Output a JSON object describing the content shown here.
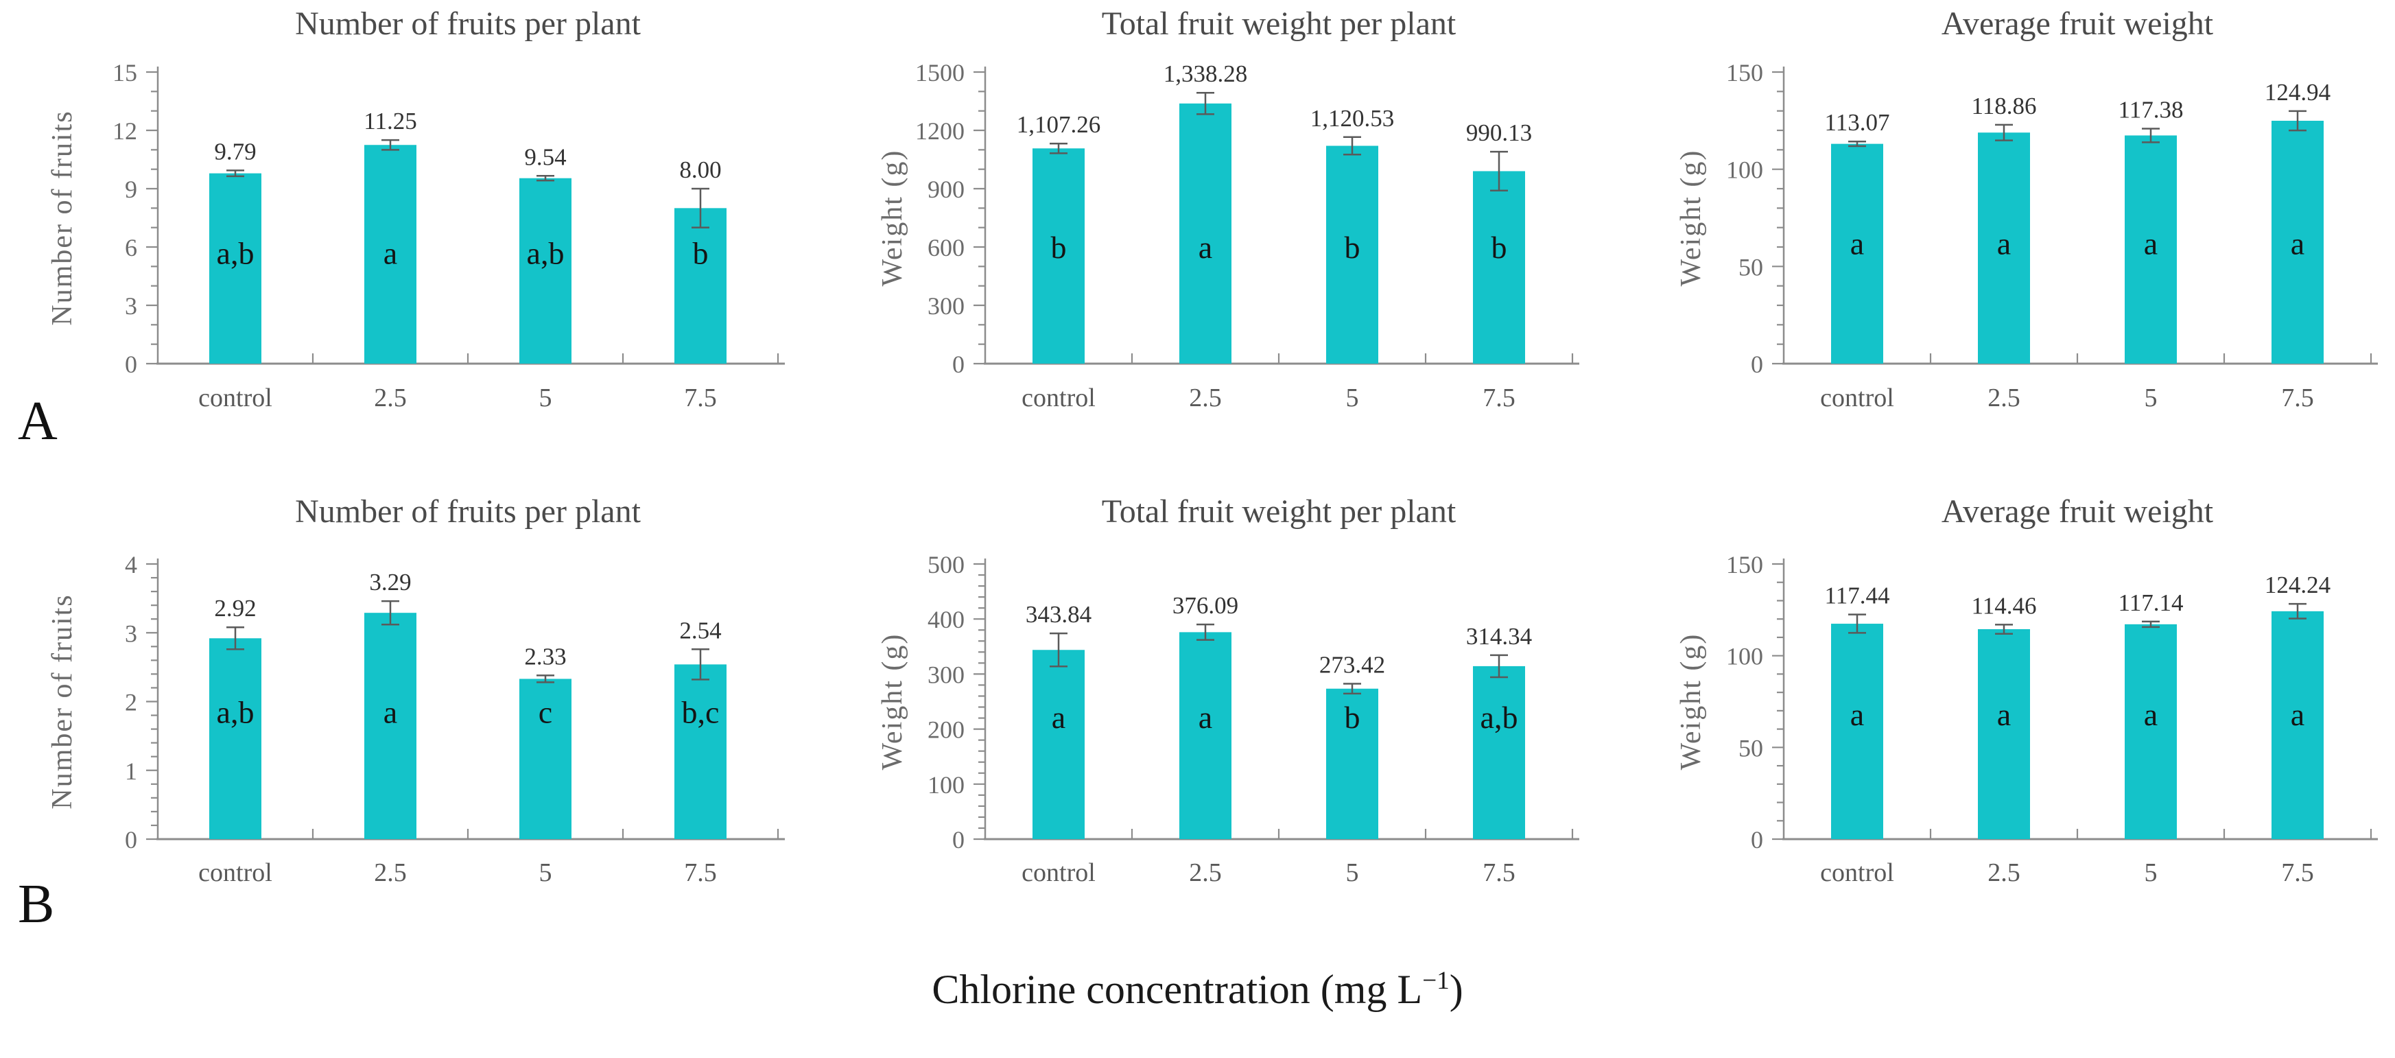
{
  "figure": {
    "panel_labels": [
      "A",
      "B"
    ],
    "x_label": {
      "text": "Chlorine concentration (mg L",
      "superscript": "−1",
      "suffix": ")"
    },
    "colors": {
      "bar": "#14c3c9",
      "axis": "#8c8c8c",
      "error": "#5a5a5a",
      "title": "#4a4a4a",
      "tick_label": "#6b6b6b",
      "category_label": "#595959",
      "value_label": "#333333",
      "letter": "#141414",
      "panel_label": "#111111"
    }
  },
  "chart_data": [
    {
      "type": "bar",
      "panel": "A",
      "col": 0,
      "title": "Number of fruits per plant",
      "ylabel": "Number of fruits",
      "ylim": [
        0,
        15
      ],
      "y_major": 3,
      "y_minor": 1,
      "y_ticks": [
        "0",
        "3",
        "6",
        "9",
        "12",
        "15"
      ],
      "grid": false,
      "legend": "none",
      "categories": [
        "control",
        "2.5",
        "5",
        "7.5"
      ],
      "values": [
        9.79,
        11.25,
        9.54,
        8.0
      ],
      "value_labels": [
        "9.79",
        "11.25",
        "9.54",
        "8.00"
      ],
      "errors": [
        0.15,
        0.25,
        0.12,
        1.0
      ],
      "letters": [
        "a,b",
        "a",
        "a,b",
        "b"
      ],
      "letter_y": 5.7
    },
    {
      "type": "bar",
      "panel": "A",
      "col": 1,
      "title": "Total fruit weight per plant",
      "ylabel": "Weight (g)",
      "ylim": [
        0,
        1500
      ],
      "y_major": 300,
      "y_minor": 100,
      "y_ticks": [
        "0",
        "300",
        "600",
        "900",
        "1200",
        "1500"
      ],
      "grid": false,
      "legend": "none",
      "categories": [
        "control",
        "2.5",
        "5",
        "7.5"
      ],
      "values": [
        1107.26,
        1338.28,
        1120.53,
        990.13
      ],
      "value_labels": [
        "1,107.26",
        "1,338.28",
        "1,120.53",
        "990.13"
      ],
      "errors": [
        25,
        55,
        45,
        100
      ],
      "letters": [
        "b",
        "a",
        "b",
        "b"
      ],
      "letter_y": 600
    },
    {
      "type": "bar",
      "panel": "A",
      "col": 2,
      "title": "Average fruit weight",
      "ylabel": "Weight (g)",
      "ylim": [
        0,
        150
      ],
      "y_major": 50,
      "y_minor": 10,
      "y_ticks": [
        "0",
        "50",
        "100",
        "150"
      ],
      "grid": false,
      "legend": "none",
      "categories": [
        "control",
        "2.5",
        "5",
        "7.5"
      ],
      "values": [
        113.07,
        118.86,
        117.38,
        124.94
      ],
      "value_labels": [
        "113.07",
        "118.86",
        "117.38",
        "124.94"
      ],
      "errors": [
        1.2,
        4,
        3.5,
        5
      ],
      "letters": [
        "a",
        "a",
        "a",
        "a"
      ],
      "letter_y": 62
    },
    {
      "type": "bar",
      "panel": "B",
      "col": 0,
      "title": "Number of fruits per plant",
      "ylabel": "Number of fruits",
      "ylim": [
        0,
        4
      ],
      "y_major": 1,
      "y_minor": 0.2,
      "y_ticks": [
        "0",
        "1",
        "2",
        "3",
        "4"
      ],
      "grid": false,
      "legend": "none",
      "categories": [
        "control",
        "2.5",
        "5",
        "7.5"
      ],
      "values": [
        2.92,
        3.29,
        2.33,
        2.54
      ],
      "value_labels": [
        "2.92",
        "3.29",
        "2.33",
        "2.54"
      ],
      "errors": [
        0.16,
        0.17,
        0.05,
        0.22
      ],
      "letters": [
        "a,b",
        "a",
        "c",
        "b,c"
      ],
      "letter_y": 1.85
    },
    {
      "type": "bar",
      "panel": "B",
      "col": 1,
      "title": "Total fruit weight per plant",
      "ylabel": "Weight (g)",
      "ylim": [
        0,
        500
      ],
      "y_major": 100,
      "y_minor": 20,
      "y_ticks": [
        "0",
        "100",
        "200",
        "300",
        "400",
        "500"
      ],
      "grid": false,
      "legend": "none",
      "categories": [
        "control",
        "2.5",
        "5",
        "7.5"
      ],
      "values": [
        343.84,
        376.09,
        273.42,
        314.34
      ],
      "value_labels": [
        "343.84",
        "376.09",
        "273.42",
        "314.34"
      ],
      "errors": [
        30,
        14,
        9,
        20
      ],
      "letters": [
        "a",
        "a",
        "b",
        "a,b"
      ],
      "letter_y": 222
    },
    {
      "type": "bar",
      "panel": "B",
      "col": 2,
      "title": "Average fruit weight",
      "ylabel": "Weight (g)",
      "ylim": [
        0,
        150
      ],
      "y_major": 50,
      "y_minor": 10,
      "y_ticks": [
        "0",
        "50",
        "100",
        "150"
      ],
      "grid": false,
      "legend": "none",
      "categories": [
        "control",
        "2.5",
        "5",
        "7.5"
      ],
      "values": [
        117.44,
        114.46,
        117.14,
        124.24
      ],
      "value_labels": [
        "117.44",
        "114.46",
        "117.14",
        "124.24"
      ],
      "errors": [
        5,
        2.5,
        1.5,
        4
      ],
      "letters": [
        "a",
        "a",
        "a",
        "a"
      ],
      "letter_y": 68
    }
  ]
}
